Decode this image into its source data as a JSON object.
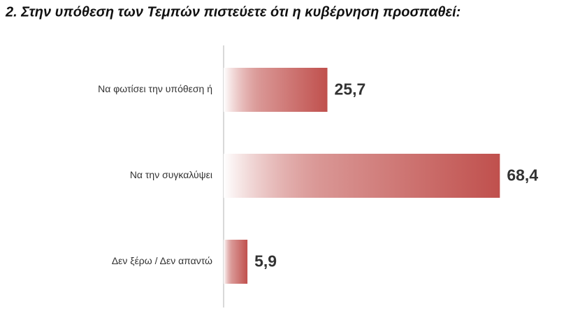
{
  "chart_data": {
    "type": "barh",
    "title": "2. Στην υπόθεση των Τεμπών πιστεύετε ότι η κυβέρνηση προσπαθεί:",
    "categories": [
      "Να φωτίσει την υπόθεση ή",
      "Να την συγκαλύψει",
      "Δεν ξέρω / Δεν απαντώ"
    ],
    "values": [
      25.7,
      68.4,
      5.9
    ],
    "value_labels": [
      "25,7",
      "68,4",
      "5,9"
    ],
    "color": "#c0504d"
  }
}
